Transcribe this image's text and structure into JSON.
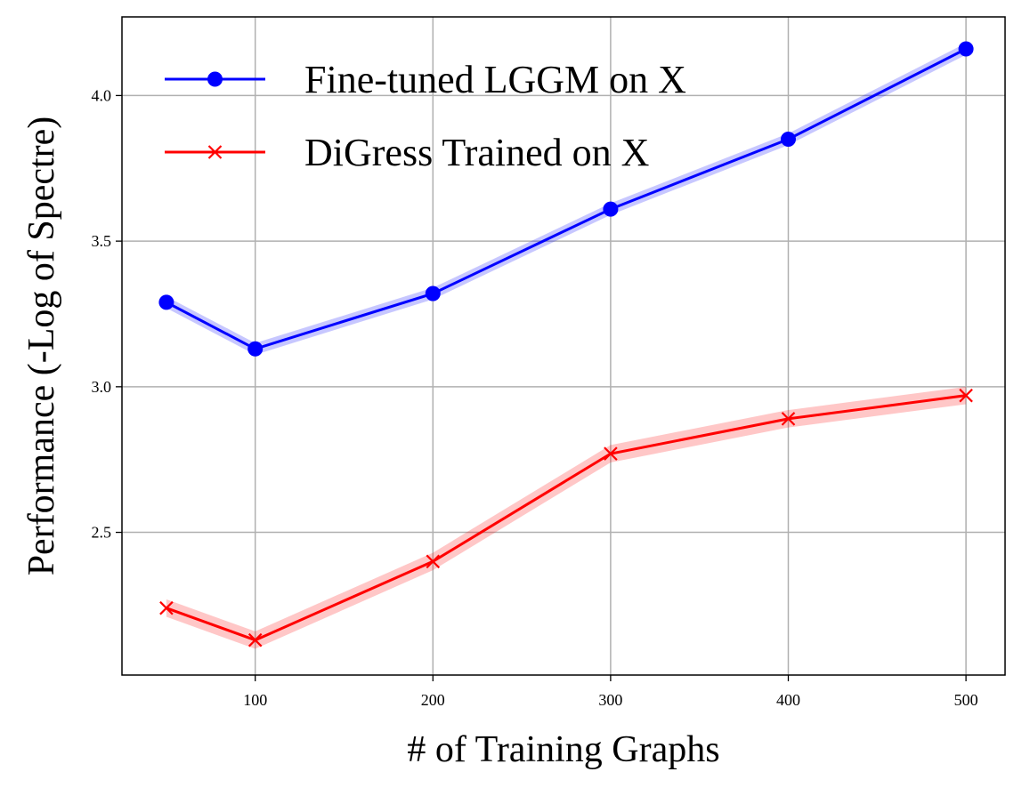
{
  "chart_data": {
    "type": "line",
    "xlabel": "# of Training Graphs",
    "ylabel": "Performance (-Log of Spectre)",
    "xlim": [
      25,
      522
    ],
    "ylim": [
      2.01,
      4.27
    ],
    "xticks": [
      100,
      200,
      300,
      400,
      500
    ],
    "yticks": [
      2.5,
      3.0,
      3.5,
      4.0
    ],
    "xtick_labels": [
      "100",
      "200",
      "300",
      "400",
      "500"
    ],
    "ytick_labels": [
      "2.5",
      "3.0",
      "3.5",
      "4.0"
    ],
    "grid": true,
    "legend_position": "top-left",
    "x": [
      50,
      100,
      200,
      300,
      400,
      500
    ],
    "series": [
      {
        "name": "Fine-tuned LGGM on X",
        "color": "#0000ff",
        "marker": "circle",
        "values": [
          3.29,
          3.13,
          3.32,
          3.61,
          3.85,
          4.16
        ],
        "band": 0.02
      },
      {
        "name": "DiGress Trained on X",
        "color": "#ff0000",
        "marker": "x",
        "values": [
          2.24,
          2.13,
          2.4,
          2.77,
          2.89,
          2.97
        ],
        "band": 0.03
      }
    ]
  }
}
